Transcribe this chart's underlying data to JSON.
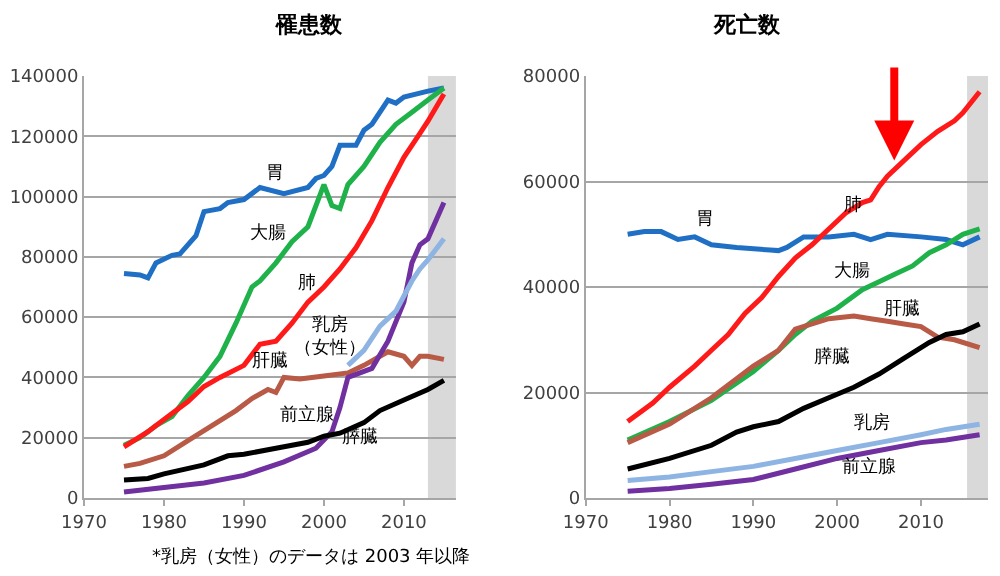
{
  "chart_data": [
    {
      "type": "line",
      "title": "罹患数",
      "xlim": [
        1970,
        2016.5
      ],
      "xticks": [
        1970,
        1980,
        1990,
        2000,
        2010
      ],
      "ylim": [
        0,
        140000
      ],
      "yticks": [
        0,
        20000,
        40000,
        60000,
        80000,
        100000,
        120000,
        140000
      ],
      "grid": "y",
      "legend": false,
      "marker": "none",
      "line_style": "solid",
      "bands": [
        {
          "axis": "x",
          "from": 2013,
          "to": 2016.5,
          "color": "#d9d9d9"
        }
      ],
      "series": [
        {
          "name": "胃",
          "color": "#1f6fc5",
          "x": [
            1975,
            1977,
            1978,
            1979,
            1981,
            1982,
            1984,
            1985,
            1987,
            1988,
            1990,
            1992,
            1995,
            1998,
            1999,
            2000,
            2001,
            2002,
            2004,
            2005,
            2006,
            2008,
            2009,
            2010,
            2013,
            2015
          ],
          "values": [
            74500,
            74000,
            73000,
            78000,
            80500,
            81000,
            87000,
            95000,
            96000,
            98000,
            99000,
            103000,
            101000,
            103000,
            106000,
            107000,
            110000,
            117000,
            117000,
            122000,
            124000,
            132000,
            131000,
            133000,
            135000,
            136000
          ]
        },
        {
          "name": "大腸",
          "color": "#1fb14a",
          "x": [
            1975,
            1977,
            1979,
            1981,
            1983,
            1985,
            1987,
            1989,
            1991,
            1992,
            1994,
            1996,
            1998,
            2000,
            2001,
            2002,
            2003,
            2005,
            2007,
            2009,
            2011,
            2013,
            2015
          ],
          "values": [
            17500,
            20000,
            24000,
            27000,
            34000,
            40000,
            47000,
            58000,
            70000,
            72000,
            78000,
            85000,
            90000,
            104000,
            97000,
            96000,
            104000,
            110000,
            118000,
            124000,
            128000,
            132000,
            136000
          ]
        },
        {
          "name": "肺",
          "color": "#ff1a1a",
          "x": [
            1975,
            1978,
            1980,
            1983,
            1985,
            1987,
            1990,
            1992,
            1994,
            1996,
            1998,
            2000,
            2002,
            2004,
            2006,
            2008,
            2010,
            2012,
            2013,
            2015
          ],
          "values": [
            17000,
            22000,
            26000,
            32000,
            37000,
            40000,
            44000,
            51000,
            52000,
            58000,
            65000,
            70000,
            76000,
            83000,
            92000,
            103000,
            113000,
            121000,
            125000,
            134000
          ]
        },
        {
          "name": "肝臓",
          "color": "#b85a46",
          "x": [
            1975,
            1977,
            1980,
            1983,
            1986,
            1989,
            1991,
            1993,
            1994,
            1995,
            1997,
            2000,
            2003,
            2005,
            2008,
            2010,
            2011,
            2012,
            2013,
            2015
          ],
          "values": [
            10500,
            11500,
            14000,
            19000,
            24000,
            29000,
            33000,
            36000,
            35000,
            40000,
            39500,
            40500,
            41500,
            44000,
            48500,
            47000,
            44000,
            47000,
            47000,
            46000
          ]
        },
        {
          "name": "前立腺",
          "color": "#7030a0",
          "x": [
            1975,
            1980,
            1985,
            1990,
            1995,
            1999,
            2001,
            2002,
            2003,
            2004,
            2006,
            2008,
            2010,
            2011,
            2012,
            2013,
            2015
          ],
          "values": [
            2000,
            3500,
            5000,
            7500,
            12000,
            16500,
            22000,
            30000,
            40000,
            41000,
            43000,
            52000,
            65000,
            78000,
            84000,
            86000,
            98000
          ]
        },
        {
          "name": "乳房（女性）",
          "color": "#8db4e2",
          "x": [
            2003,
            2005,
            2007,
            2009,
            2010,
            2011,
            2012,
            2013,
            2015
          ],
          "values": [
            44000,
            49000,
            57000,
            62000,
            67000,
            72000,
            76000,
            79000,
            86000
          ]
        },
        {
          "name": "膵臓",
          "color": "#000000",
          "x": [
            1975,
            1978,
            1980,
            1985,
            1988,
            1990,
            1995,
            1998,
            2000,
            2002,
            2005,
            2007,
            2010,
            2013,
            2015
          ],
          "values": [
            6000,
            6500,
            8000,
            11000,
            14000,
            14500,
            17000,
            18500,
            20500,
            21500,
            25000,
            29000,
            32500,
            36000,
            39000
          ]
        }
      ],
      "annotations": [
        "*乳房（女性）のデータは 2003 年以降"
      ]
    },
    {
      "type": "line",
      "title": "死亡数",
      "xlim": [
        1970,
        2018
      ],
      "xticks": [
        1970,
        1980,
        1990,
        2000,
        2010
      ],
      "ylim": [
        0,
        80000
      ],
      "yticks": [
        0,
        20000,
        40000,
        60000,
        80000
      ],
      "grid": "y",
      "legend": false,
      "marker": "none",
      "line_style": "solid",
      "bands": [
        {
          "axis": "x",
          "from": 2015.5,
          "to": 2018,
          "color": "#d9d9d9"
        }
      ],
      "series": [
        {
          "name": "胃",
          "color": "#1f6fc5",
          "x": [
            1975,
            1977,
            1979,
            1981,
            1983,
            1985,
            1988,
            1992,
            1993,
            1994,
            1996,
            1999,
            2002,
            2004,
            2006,
            2010,
            2013,
            2015,
            2017
          ],
          "values": [
            50000,
            50500,
            50500,
            49000,
            49500,
            48000,
            47500,
            47000,
            46900,
            47500,
            49500,
            49500,
            50000,
            49000,
            50000,
            49500,
            49000,
            48000,
            49500
          ]
        },
        {
          "name": "肺",
          "color": "#ff1a1a",
          "x": [
            1975,
            1978,
            1980,
            1983,
            1985,
            1987,
            1989,
            1991,
            1993,
            1995,
            1997,
            1999,
            2001,
            2003,
            2004,
            2005,
            2006,
            2008,
            2010,
            2012,
            2014,
            2015,
            2017
          ],
          "values": [
            14500,
            18000,
            21000,
            25000,
            28000,
            31000,
            35000,
            38000,
            42000,
            45500,
            48000,
            51000,
            54000,
            56000,
            56500,
            59000,
            61000,
            64000,
            67000,
            69500,
            71500,
            73000,
            77000
          ]
        },
        {
          "name": "大腸",
          "color": "#1fb14a",
          "x": [
            1975,
            1980,
            1985,
            1990,
            1993,
            1995,
            1997,
            2000,
            2003,
            2005,
            2007,
            2009,
            2011,
            2013,
            2015,
            2017
          ],
          "values": [
            11000,
            14500,
            18500,
            24000,
            28000,
            31000,
            33500,
            36000,
            39500,
            41000,
            42500,
            44000,
            46500,
            48000,
            50000,
            51000
          ]
        },
        {
          "name": "肝臓",
          "color": "#b85a46",
          "x": [
            1975,
            1980,
            1985,
            1990,
            1993,
            1995,
            1997,
            1999,
            2002,
            2004,
            2006,
            2008,
            2010,
            2012,
            2014,
            2017
          ],
          "values": [
            10500,
            14000,
            19000,
            25000,
            28000,
            32000,
            33000,
            34000,
            34500,
            34000,
            33500,
            33000,
            32500,
            30500,
            30000,
            28500
          ]
        },
        {
          "name": "膵臓",
          "color": "#000000",
          "x": [
            1975,
            1980,
            1985,
            1988,
            1990,
            1993,
            1996,
            1999,
            2002,
            2005,
            2008,
            2011,
            2013,
            2015,
            2017
          ],
          "values": [
            5500,
            7500,
            10000,
            12500,
            13500,
            14500,
            17000,
            19000,
            21000,
            23500,
            26500,
            29500,
            31000,
            31500,
            33000
          ]
        },
        {
          "name": "乳房",
          "color": "#8db4e2",
          "x": [
            1975,
            1980,
            1985,
            1990,
            1995,
            2000,
            2005,
            2010,
            2013,
            2017
          ],
          "values": [
            3300,
            4000,
            5000,
            6000,
            7500,
            9000,
            10500,
            12000,
            13000,
            14000
          ]
        },
        {
          "name": "前立腺",
          "color": "#7030a0",
          "x": [
            1975,
            1980,
            1985,
            1990,
            1995,
            2000,
            2005,
            2010,
            2013,
            2017
          ],
          "values": [
            1300,
            1800,
            2600,
            3500,
            5500,
            7500,
            9000,
            10500,
            11000,
            12000
          ]
        }
      ]
    }
  ]
}
